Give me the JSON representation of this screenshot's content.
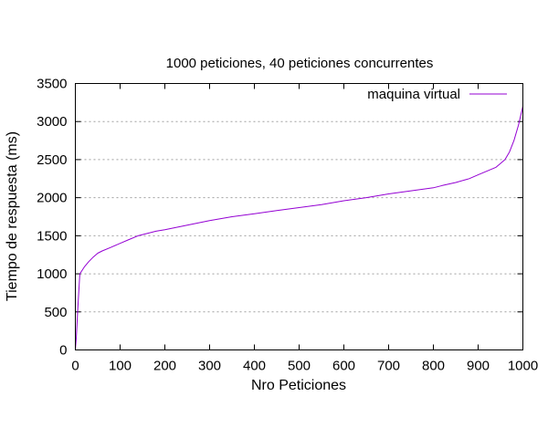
{
  "chart_data": {
    "type": "line",
    "title": "1000 peticiones, 40 peticiones concurrentes",
    "xlabel": "Nro Peticiones",
    "ylabel": "Tiempo de respuesta (ms)",
    "xlim": [
      0,
      1000
    ],
    "ylim": [
      0,
      3500
    ],
    "xticks": [
      0,
      100,
      200,
      300,
      400,
      500,
      600,
      700,
      800,
      900,
      1000
    ],
    "yticks": [
      0,
      500,
      1000,
      1500,
      2000,
      2500,
      3000,
      3500
    ],
    "grid": "horizontal",
    "legend_position": "top-right",
    "series": [
      {
        "name": "maquina virtual",
        "color": "#9400d3",
        "x": [
          0,
          2,
          5,
          10,
          20,
          30,
          40,
          50,
          60,
          80,
          100,
          120,
          140,
          160,
          180,
          200,
          250,
          300,
          350,
          400,
          450,
          500,
          550,
          600,
          650,
          700,
          750,
          800,
          820,
          850,
          880,
          900,
          920,
          940,
          950,
          960,
          970,
          980,
          990,
          1000
        ],
        "y": [
          0,
          150,
          500,
          1000,
          1090,
          1160,
          1220,
          1270,
          1300,
          1350,
          1400,
          1450,
          1500,
          1530,
          1560,
          1580,
          1640,
          1700,
          1750,
          1790,
          1830,
          1870,
          1910,
          1960,
          2000,
          2050,
          2090,
          2130,
          2160,
          2200,
          2250,
          2300,
          2350,
          2400,
          2450,
          2500,
          2600,
          2750,
          2950,
          3200
        ]
      }
    ]
  }
}
